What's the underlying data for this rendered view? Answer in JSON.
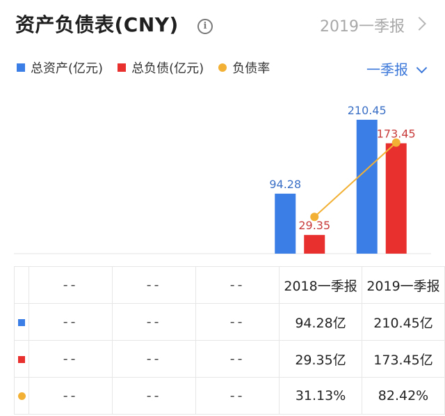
{
  "header": {
    "title": "资产负债表(CNY)",
    "info_icon": "info-icon",
    "period_link": "2019一季报"
  },
  "legend": {
    "items": [
      {
        "label": "总资产(亿元)",
        "color": "#3a7ee6",
        "shape": "square"
      },
      {
        "label": "总负债(亿元)",
        "color": "#e8302f",
        "shape": "square"
      },
      {
        "label": "负债率",
        "color": "#f2b134",
        "shape": "dot"
      }
    ],
    "period_select": "一季报"
  },
  "chart_data": {
    "type": "bar",
    "categories": [
      "",
      "",
      "",
      "2018一季报",
      "2019一季报"
    ],
    "series": [
      {
        "name": "总资产(亿元)",
        "type": "bar",
        "color": "#3a7ee6",
        "values": [
          null,
          null,
          null,
          94.28,
          210.45
        ],
        "labels": [
          "",
          "",
          "",
          "94.28",
          "210.45"
        ]
      },
      {
        "name": "总负债(亿元)",
        "type": "bar",
        "color": "#e8302f",
        "values": [
          null,
          null,
          null,
          29.35,
          173.45
        ],
        "labels": [
          "",
          "",
          "",
          "29.35",
          "173.45"
        ]
      },
      {
        "name": "负债率",
        "type": "line",
        "color": "#f2b134",
        "values": [
          null,
          null,
          null,
          31.13,
          82.42
        ]
      }
    ],
    "ylim": [
      0,
      230
    ],
    "grid": false
  },
  "table": {
    "rows": [
      {
        "marker": "",
        "cells": [
          "--",
          "--",
          "--",
          "2018一季报",
          "2019一季报"
        ]
      },
      {
        "marker": "square",
        "color": "#3a7ee6",
        "cells": [
          "--",
          "--",
          "--",
          "94.28亿",
          "210.45亿"
        ]
      },
      {
        "marker": "square",
        "color": "#e8302f",
        "cells": [
          "--",
          "--",
          "--",
          "29.35亿",
          "173.45亿"
        ]
      },
      {
        "marker": "dot",
        "color": "#f2b134",
        "cells": [
          "--",
          "--",
          "--",
          "31.13%",
          "82.42%"
        ]
      }
    ]
  }
}
